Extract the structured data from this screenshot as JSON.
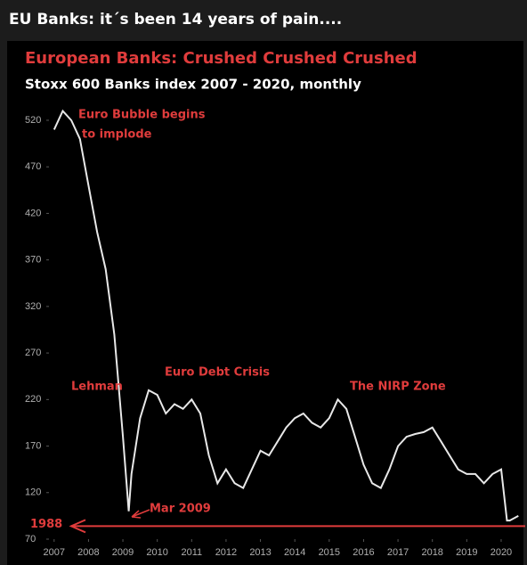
{
  "header": {
    "title": "EU Banks: it´s been 14 years of pain...."
  },
  "chart_data": {
    "type": "line",
    "title": "European Banks: Crushed Crushed Crushed",
    "subtitle": "Stoxx 600 Banks index 2007 - 2020, monthly",
    "x": [
      2007.0,
      2007.25,
      2007.5,
      2007.75,
      2008.0,
      2008.25,
      2008.5,
      2008.75,
      2009.0,
      2009.17,
      2009.25,
      2009.5,
      2009.75,
      2010.0,
      2010.25,
      2010.5,
      2010.75,
      2011.0,
      2011.25,
      2011.5,
      2011.75,
      2012.0,
      2012.25,
      2012.5,
      2012.75,
      2013.0,
      2013.25,
      2013.5,
      2013.75,
      2014.0,
      2014.25,
      2014.5,
      2014.75,
      2015.0,
      2015.25,
      2015.5,
      2015.75,
      2016.0,
      2016.25,
      2016.5,
      2016.75,
      2017.0,
      2017.25,
      2017.5,
      2017.75,
      2018.0,
      2018.25,
      2018.5,
      2018.75,
      2019.0,
      2019.25,
      2019.5,
      2019.75,
      2020.0,
      2020.17,
      2020.25,
      2020.5
    ],
    "series": [
      {
        "name": "Stoxx 600 Banks",
        "color": "#e8e8e8",
        "values": [
          510,
          530,
          520,
          500,
          450,
          400,
          360,
          290,
          180,
          100,
          140,
          200,
          230,
          225,
          205,
          215,
          210,
          220,
          205,
          160,
          130,
          145,
          130,
          125,
          145,
          165,
          160,
          175,
          190,
          200,
          205,
          195,
          190,
          200,
          220,
          210,
          180,
          150,
          130,
          125,
          145,
          170,
          180,
          183,
          185,
          190,
          175,
          160,
          145,
          140,
          140,
          130,
          140,
          145,
          90,
          90,
          95
        ]
      }
    ],
    "xlim": [
      2006.85,
      2020.7
    ],
    "xticks": [
      2007,
      2008,
      2009,
      2010,
      2011,
      2012,
      2013,
      2014,
      2015,
      2016,
      2017,
      2018,
      2019,
      2020
    ],
    "ylim": [
      70,
      542
    ],
    "yticks": [
      70,
      120,
      170,
      220,
      270,
      320,
      370,
      420,
      470,
      520
    ],
    "reference_line": {
      "label": "1988",
      "value": 84,
      "color": "#e03c3c"
    },
    "annotations": [
      "Euro Bubble begins",
      "to implode",
      "Lehman",
      "Euro Debt Crisis",
      "The NIRP Zone",
      "Mar 2009"
    ],
    "annotation_color": "#e03c3c"
  }
}
